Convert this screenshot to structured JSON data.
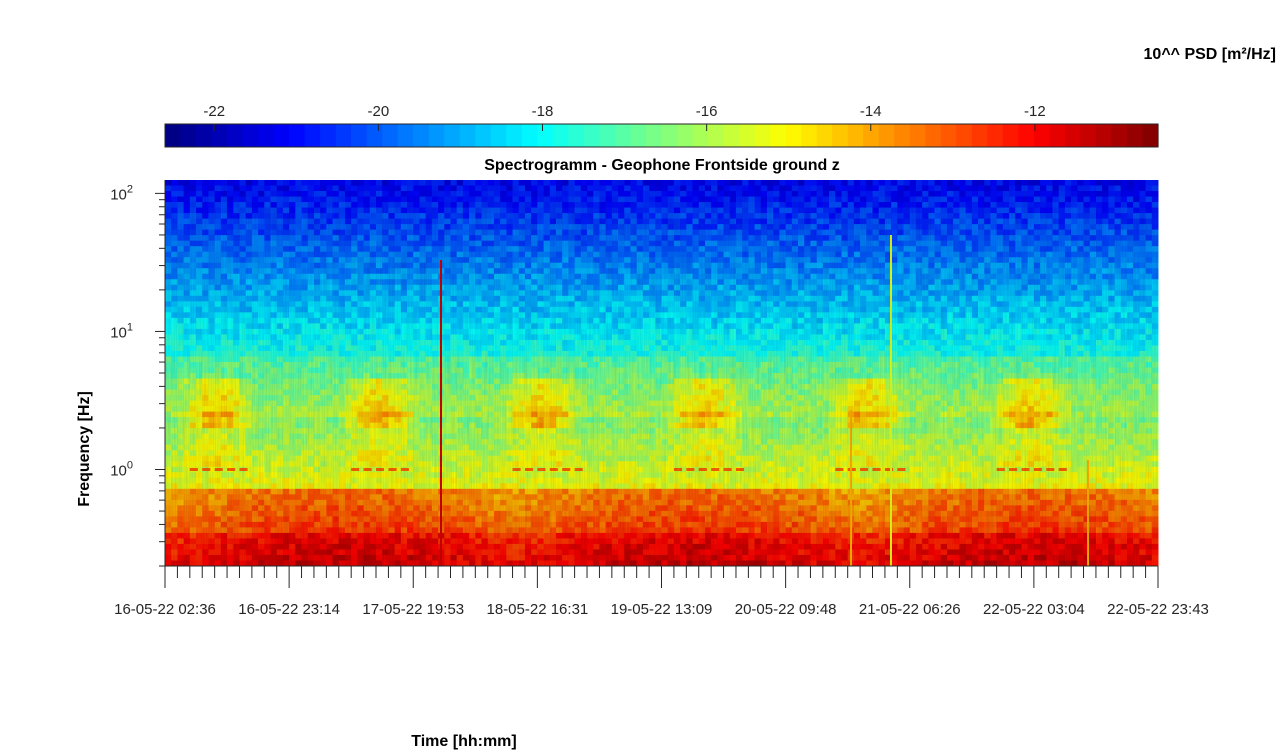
{
  "chart_data": {
    "type": "heatmap",
    "title": "Spectrogramm - Geophone Frontside ground z",
    "xlabel": "Time [hh:mm]",
    "ylabel": "Frequency [Hz]",
    "y_scale": "log",
    "ylim": [
      0.2,
      125
    ],
    "y_ticks": [
      {
        "value": 1,
        "base": "10",
        "exp": "0"
      },
      {
        "value": 10,
        "base": "10",
        "exp": "1"
      },
      {
        "value": 100,
        "base": "10",
        "exp": "2"
      }
    ],
    "x_ticks": [
      "16-05-22 02:36",
      "16-05-22 23:14",
      "17-05-22 19:53",
      "18-05-22 16:31",
      "19-05-22 13:09",
      "20-05-22 09:48",
      "21-05-22 06:26",
      "22-05-22 03:04",
      "22-05-22 23:43"
    ],
    "colorbar": {
      "label": "10^^ PSD [m²/Hz]",
      "colormap": "jet",
      "range": [
        -22.6,
        -10.5
      ],
      "ticks": [
        "-22",
        "-20",
        "-18",
        "-16",
        "-14",
        "-12"
      ],
      "tick_values": [
        -22,
        -20,
        -18,
        -16,
        -14,
        -12
      ]
    },
    "grid": false
  }
}
